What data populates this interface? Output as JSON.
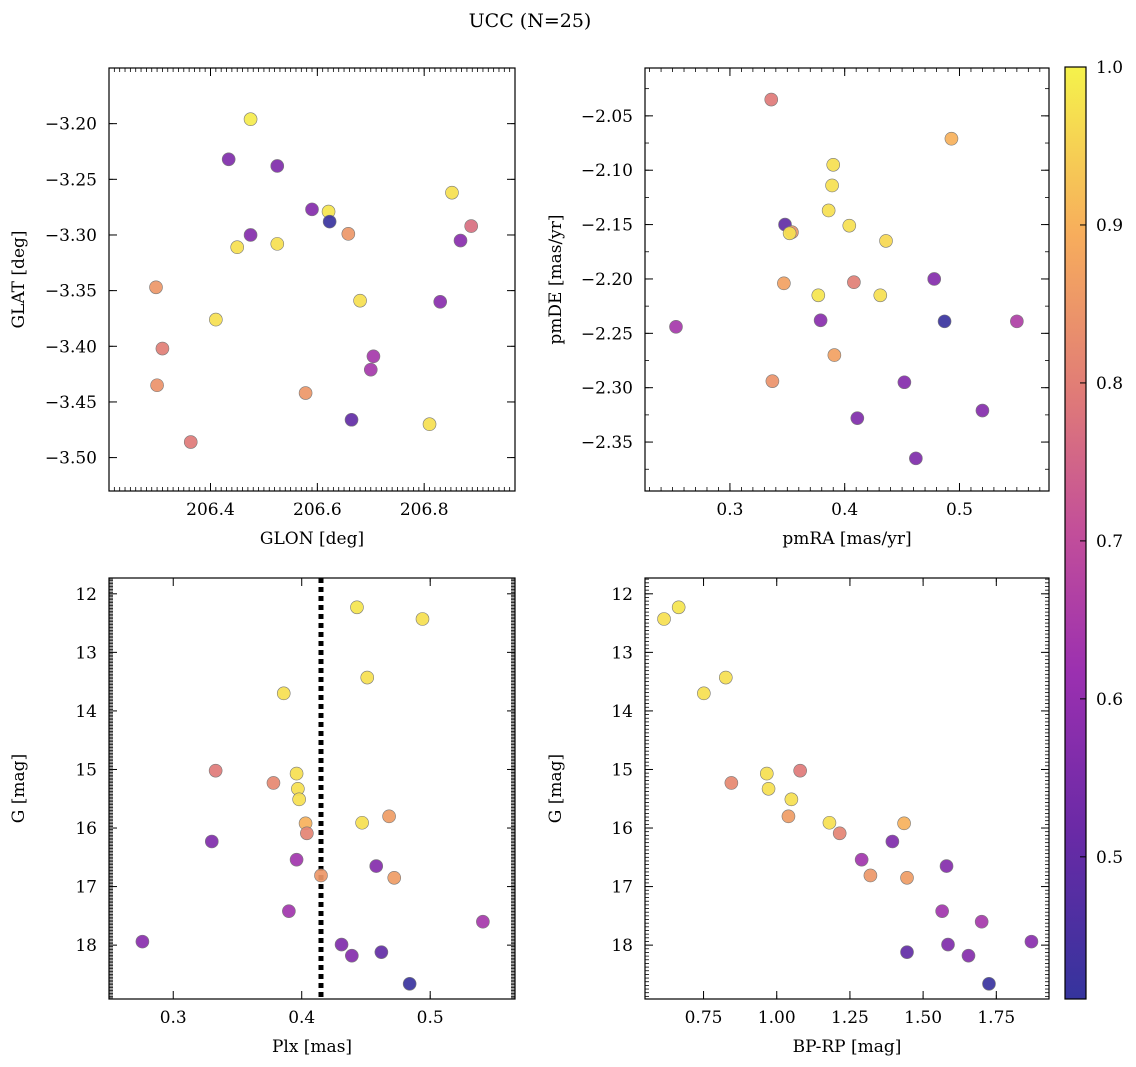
{
  "title": "UCC (N=25)",
  "colorbar": {
    "range": [
      0.41,
      1.0
    ],
    "ticks": [
      0.5,
      0.6,
      0.7,
      0.8,
      0.9,
      1.0
    ],
    "tick_labels": [
      "0.5",
      "0.6",
      "0.7",
      "0.8",
      "0.9",
      "1.0"
    ],
    "colormap": "plasma"
  },
  "chart_data": [
    {
      "type": "scatter",
      "xlabel": "GLON [deg]",
      "ylabel": "GLAT [deg]",
      "xlim": [
        206.21,
        206.97
      ],
      "ylim": [
        -3.53,
        -3.15
      ],
      "xticks": [
        206.4,
        206.6,
        206.8
      ],
      "xtick_labels": [
        "206.4",
        "206.6",
        "206.8"
      ],
      "yticks": [
        -3.5,
        -3.45,
        -3.4,
        -3.35,
        -3.3,
        -3.25,
        -3.2
      ],
      "ytick_labels": [
        "−3.50",
        "−3.45",
        "−3.40",
        "−3.35",
        "−3.30",
        "−3.25",
        "−3.20"
      ],
      "points": [
        {
          "x": 206.475,
          "y": -3.196,
          "c": 0.99
        },
        {
          "x": 206.434,
          "y": -3.232,
          "c": 0.56
        },
        {
          "x": 206.525,
          "y": -3.238,
          "c": 0.56
        },
        {
          "x": 206.852,
          "y": -3.262,
          "c": 0.97
        },
        {
          "x": 206.59,
          "y": -3.277,
          "c": 0.57
        },
        {
          "x": 206.621,
          "y": -3.279,
          "c": 0.98
        },
        {
          "x": 206.623,
          "y": -3.288,
          "c": 0.42
        },
        {
          "x": 206.888,
          "y": -3.292,
          "c": 0.77
        },
        {
          "x": 206.658,
          "y": -3.299,
          "c": 0.85
        },
        {
          "x": 206.475,
          "y": -3.3,
          "c": 0.57
        },
        {
          "x": 206.868,
          "y": -3.305,
          "c": 0.58
        },
        {
          "x": 206.525,
          "y": -3.308,
          "c": 0.97
        },
        {
          "x": 206.45,
          "y": -3.311,
          "c": 0.97
        },
        {
          "x": 206.298,
          "y": -3.347,
          "c": 0.85
        },
        {
          "x": 206.68,
          "y": -3.359,
          "c": 0.97
        },
        {
          "x": 206.83,
          "y": -3.36,
          "c": 0.58
        },
        {
          "x": 206.41,
          "y": -3.376,
          "c": 0.97
        },
        {
          "x": 206.31,
          "y": -3.402,
          "c": 0.8
        },
        {
          "x": 206.705,
          "y": -3.409,
          "c": 0.64
        },
        {
          "x": 206.7,
          "y": -3.421,
          "c": 0.64
        },
        {
          "x": 206.3,
          "y": -3.435,
          "c": 0.84
        },
        {
          "x": 206.578,
          "y": -3.442,
          "c": 0.85
        },
        {
          "x": 206.664,
          "y": -3.466,
          "c": 0.5
        },
        {
          "x": 206.81,
          "y": -3.47,
          "c": 0.97
        },
        {
          "x": 206.363,
          "y": -3.486,
          "c": 0.79
        }
      ]
    },
    {
      "type": "scatter",
      "xlabel": "pmRA [mas/yr]",
      "ylabel": "pmDE [mas/yr]",
      "xlim": [
        0.226,
        0.578
      ],
      "ylim": [
        -2.395,
        -2.006
      ],
      "xticks": [
        0.3,
        0.4,
        0.5
      ],
      "xtick_labels": [
        "0.3",
        "0.4",
        "0.5"
      ],
      "yticks": [
        -2.35,
        -2.3,
        -2.25,
        -2.2,
        -2.15,
        -2.1,
        -2.05
      ],
      "ytick_labels": [
        "−2.35",
        "−2.30",
        "−2.25",
        "−2.20",
        "−2.15",
        "−2.10",
        "−2.05"
      ],
      "points": [
        {
          "x": 0.336,
          "y": -2.035,
          "c": 0.79
        },
        {
          "x": 0.493,
          "y": -2.071,
          "c": 0.9
        },
        {
          "x": 0.39,
          "y": -2.095,
          "c": 0.97
        },
        {
          "x": 0.389,
          "y": -2.114,
          "c": 0.97
        },
        {
          "x": 0.386,
          "y": -2.137,
          "c": 0.97
        },
        {
          "x": 0.348,
          "y": -2.15,
          "c": 0.5
        },
        {
          "x": 0.404,
          "y": -2.151,
          "c": 0.97
        },
        {
          "x": 0.354,
          "y": -2.157,
          "c": 0.85
        },
        {
          "x": 0.352,
          "y": -2.158,
          "c": 0.97
        },
        {
          "x": 0.436,
          "y": -2.165,
          "c": 0.96
        },
        {
          "x": 0.478,
          "y": -2.2,
          "c": 0.57
        },
        {
          "x": 0.408,
          "y": -2.203,
          "c": 0.8
        },
        {
          "x": 0.347,
          "y": -2.204,
          "c": 0.87
        },
        {
          "x": 0.377,
          "y": -2.215,
          "c": 0.98
        },
        {
          "x": 0.431,
          "y": -2.215,
          "c": 0.97
        },
        {
          "x": 0.379,
          "y": -2.238,
          "c": 0.58
        },
        {
          "x": 0.487,
          "y": -2.239,
          "c": 0.42
        },
        {
          "x": 0.55,
          "y": -2.239,
          "c": 0.66
        },
        {
          "x": 0.253,
          "y": -2.244,
          "c": 0.64
        },
        {
          "x": 0.391,
          "y": -2.27,
          "c": 0.87
        },
        {
          "x": 0.337,
          "y": -2.294,
          "c": 0.84
        },
        {
          "x": 0.452,
          "y": -2.295,
          "c": 0.57
        },
        {
          "x": 0.52,
          "y": -2.321,
          "c": 0.57
        },
        {
          "x": 0.411,
          "y": -2.328,
          "c": 0.56
        },
        {
          "x": 0.462,
          "y": -2.365,
          "c": 0.56
        }
      ]
    },
    {
      "type": "scatter",
      "xlabel": "Plx [mas]",
      "ylabel": "G [mag]",
      "xlim": [
        0.25,
        0.566
      ],
      "ylim": [
        18.92,
        11.73
      ],
      "xticks": [
        0.3,
        0.4,
        0.5
      ],
      "xtick_labels": [
        "0.3",
        "0.4",
        "0.5"
      ],
      "yticks": [
        12,
        13,
        14,
        15,
        16,
        17,
        18
      ],
      "ytick_labels": [
        "12",
        "13",
        "14",
        "15",
        "16",
        "17",
        "18"
      ],
      "vline": 0.415,
      "points": [
        {
          "x": 0.443,
          "y": 12.23,
          "c": 0.98
        },
        {
          "x": 0.494,
          "y": 12.43,
          "c": 0.97
        },
        {
          "x": 0.451,
          "y": 13.43,
          "c": 0.97
        },
        {
          "x": 0.386,
          "y": 13.7,
          "c": 0.97
        },
        {
          "x": 0.333,
          "y": 15.02,
          "c": 0.79
        },
        {
          "x": 0.396,
          "y": 15.07,
          "c": 0.97
        },
        {
          "x": 0.378,
          "y": 15.23,
          "c": 0.82
        },
        {
          "x": 0.397,
          "y": 15.33,
          "c": 0.97
        },
        {
          "x": 0.398,
          "y": 15.51,
          "c": 0.97
        },
        {
          "x": 0.468,
          "y": 15.8,
          "c": 0.86
        },
        {
          "x": 0.447,
          "y": 15.91,
          "c": 0.97
        },
        {
          "x": 0.403,
          "y": 15.92,
          "c": 0.9
        },
        {
          "x": 0.404,
          "y": 16.09,
          "c": 0.81
        },
        {
          "x": 0.33,
          "y": 16.23,
          "c": 0.56
        },
        {
          "x": 0.396,
          "y": 16.54,
          "c": 0.63
        },
        {
          "x": 0.458,
          "y": 16.65,
          "c": 0.57
        },
        {
          "x": 0.415,
          "y": 16.81,
          "c": 0.85
        },
        {
          "x": 0.472,
          "y": 16.85,
          "c": 0.86
        },
        {
          "x": 0.39,
          "y": 17.42,
          "c": 0.63
        },
        {
          "x": 0.541,
          "y": 17.6,
          "c": 0.64
        },
        {
          "x": 0.276,
          "y": 17.94,
          "c": 0.58
        },
        {
          "x": 0.431,
          "y": 17.99,
          "c": 0.56
        },
        {
          "x": 0.462,
          "y": 18.12,
          "c": 0.5
        },
        {
          "x": 0.439,
          "y": 18.18,
          "c": 0.57
        },
        {
          "x": 0.484,
          "y": 18.66,
          "c": 0.42
        }
      ]
    },
    {
      "type": "scatter",
      "xlabel": "BP-RP [mag]",
      "ylabel": "G [mag]",
      "xlim": [
        0.55,
        1.93
      ],
      "ylim": [
        18.92,
        11.73
      ],
      "xticks": [
        0.75,
        1.0,
        1.25,
        1.5,
        1.75
      ],
      "xtick_labels": [
        "0.75",
        "1.00",
        "1.25",
        "1.50",
        "1.75"
      ],
      "yticks": [
        12,
        13,
        14,
        15,
        16,
        17,
        18
      ],
      "ytick_labels": [
        "12",
        "13",
        "14",
        "15",
        "16",
        "17",
        "18"
      ],
      "points": [
        {
          "x": 0.665,
          "y": 12.23,
          "c": 0.98
        },
        {
          "x": 0.615,
          "y": 12.43,
          "c": 0.97
        },
        {
          "x": 0.826,
          "y": 13.43,
          "c": 0.97
        },
        {
          "x": 0.751,
          "y": 13.7,
          "c": 0.97
        },
        {
          "x": 1.08,
          "y": 15.02,
          "c": 0.79
        },
        {
          "x": 0.966,
          "y": 15.07,
          "c": 0.97
        },
        {
          "x": 0.845,
          "y": 15.23,
          "c": 0.82
        },
        {
          "x": 0.972,
          "y": 15.33,
          "c": 0.97
        },
        {
          "x": 1.05,
          "y": 15.51,
          "c": 0.97
        },
        {
          "x": 1.04,
          "y": 15.8,
          "c": 0.86
        },
        {
          "x": 1.18,
          "y": 15.91,
          "c": 0.97
        },
        {
          "x": 1.435,
          "y": 15.92,
          "c": 0.9
        },
        {
          "x": 1.215,
          "y": 16.09,
          "c": 0.81
        },
        {
          "x": 1.395,
          "y": 16.23,
          "c": 0.56
        },
        {
          "x": 1.29,
          "y": 16.54,
          "c": 0.63
        },
        {
          "x": 1.58,
          "y": 16.65,
          "c": 0.57
        },
        {
          "x": 1.32,
          "y": 16.81,
          "c": 0.85
        },
        {
          "x": 1.445,
          "y": 16.85,
          "c": 0.86
        },
        {
          "x": 1.565,
          "y": 17.42,
          "c": 0.63
        },
        {
          "x": 1.7,
          "y": 17.6,
          "c": 0.64
        },
        {
          "x": 1.87,
          "y": 17.94,
          "c": 0.58
        },
        {
          "x": 1.585,
          "y": 17.99,
          "c": 0.56
        },
        {
          "x": 1.445,
          "y": 18.12,
          "c": 0.5
        },
        {
          "x": 1.655,
          "y": 18.18,
          "c": 0.57
        },
        {
          "x": 1.725,
          "y": 18.66,
          "c": 0.42
        }
      ]
    }
  ]
}
